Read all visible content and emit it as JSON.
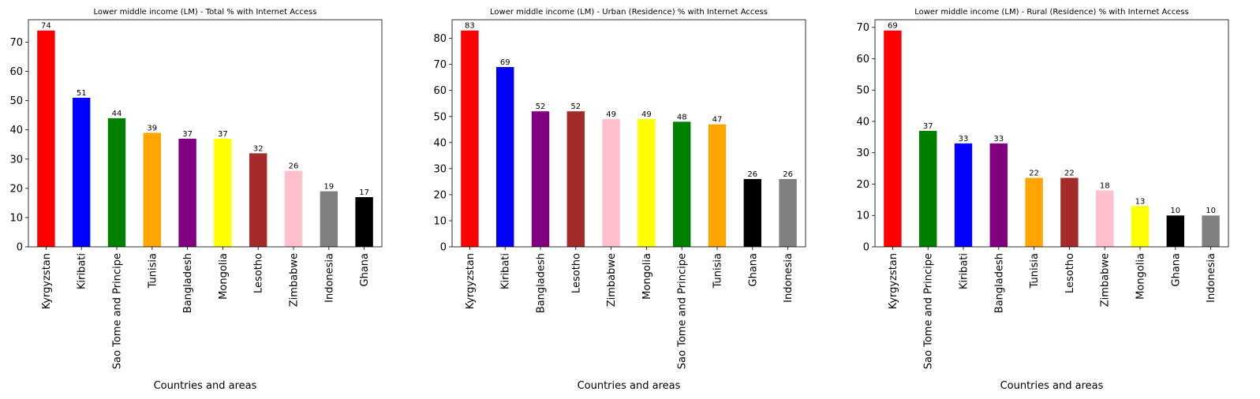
{
  "chart_data": [
    {
      "type": "bar",
      "title": "Lower middle income (LM) - Total % with Internet Access",
      "xlabel": "Countries and areas",
      "ylabel": "",
      "ylim": [
        0,
        77.7
      ],
      "yticks": [
        0,
        10,
        20,
        30,
        40,
        50,
        60,
        70
      ],
      "grid": false,
      "categories": [
        "Kyrgyzstan",
        "Kiribati",
        "Sao Tome and Principe",
        "Tunisia",
        "Bangladesh",
        "Mongolia",
        "Lesotho",
        "Zimbabwe",
        "Indonesia",
        "Ghana"
      ],
      "values": [
        74,
        51,
        44,
        39,
        37,
        37,
        32,
        26,
        19,
        17
      ],
      "colors": [
        "#ff0000",
        "#0000ff",
        "#008000",
        "#ffa500",
        "#800080",
        "#ffff00",
        "#a52a2a",
        "#ffc0cb",
        "#808080",
        "#000000"
      ]
    },
    {
      "type": "bar",
      "title": "Lower middle income (LM) - Urban (Residence) % with Internet Access",
      "xlabel": "Countries and areas",
      "ylabel": "",
      "ylim": [
        0,
        87.15
      ],
      "yticks": [
        0,
        10,
        20,
        30,
        40,
        50,
        60,
        70,
        80
      ],
      "grid": false,
      "categories": [
        "Kyrgyzstan",
        "Kiribati",
        "Bangladesh",
        "Lesotho",
        "Zimbabwe",
        "Mongolia",
        "Sao Tome and Principe",
        "Tunisia",
        "Ghana",
        "Indonesia"
      ],
      "values": [
        83,
        69,
        52,
        52,
        49,
        49,
        48,
        47,
        26,
        26
      ],
      "colors": [
        "#ff0000",
        "#0000ff",
        "#800080",
        "#a52a2a",
        "#ffc0cb",
        "#ffff00",
        "#008000",
        "#ffa500",
        "#000000",
        "#808080"
      ]
    },
    {
      "type": "bar",
      "title": "Lower middle income (LM) - Rural (Residence) % with Internet Access",
      "xlabel": "Countries and areas",
      "ylabel": "",
      "ylim": [
        0,
        72.45
      ],
      "yticks": [
        0,
        10,
        20,
        30,
        40,
        50,
        60,
        70
      ],
      "grid": false,
      "categories": [
        "Kyrgyzstan",
        "Sao Tome and Principe",
        "Kiribati",
        "Bangladesh",
        "Tunisia",
        "Lesotho",
        "Zimbabwe",
        "Mongolia",
        "Ghana",
        "Indonesia"
      ],
      "values": [
        69,
        37,
        33,
        33,
        22,
        22,
        18,
        13,
        10,
        10
      ],
      "colors": [
        "#ff0000",
        "#008000",
        "#0000ff",
        "#800080",
        "#ffa500",
        "#a52a2a",
        "#ffc0cb",
        "#ffff00",
        "#000000",
        "#808080"
      ]
    }
  ]
}
